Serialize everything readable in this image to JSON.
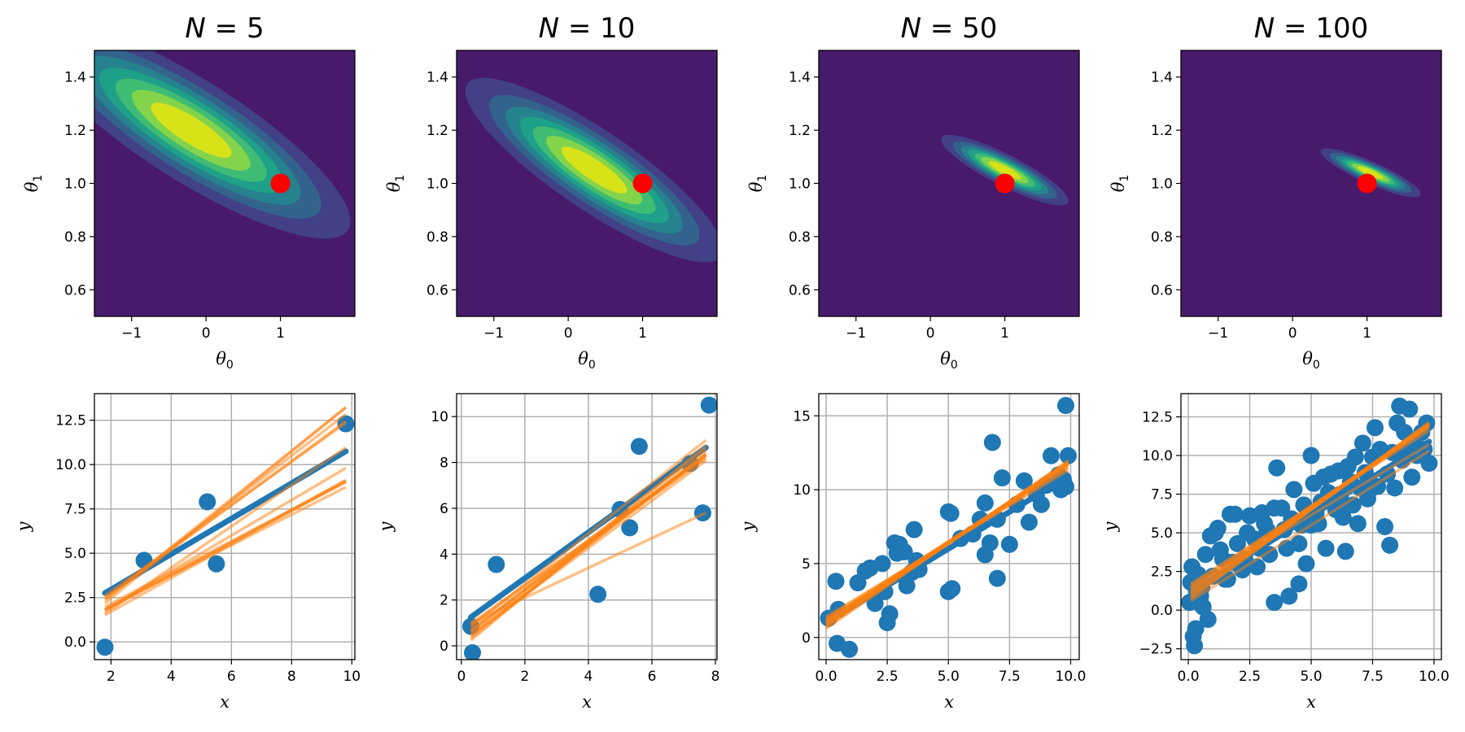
{
  "figure": {
    "description": "Bayesian linear regression: posterior over parameters (top) and sampled regression lines on data (bottom) for increasing N"
  },
  "colors": {
    "viridis_levels": [
      "#481a6c",
      "#424086",
      "#33638d",
      "#26828e",
      "#1fa088",
      "#3fbc73",
      "#84d44b",
      "#d8e219"
    ],
    "true_param_marker": "#ff0000",
    "data_points": "#1f77b4",
    "mean_line": "#1f77b4",
    "sample_lines": "#ff7f0e",
    "grid": "#b0b0b0"
  },
  "chart_data": [
    {
      "type": "heatmap",
      "subtype": "filled-contour",
      "panel": "posterior-N5",
      "title": "N = 5",
      "title_var": "N",
      "title_value": "5",
      "xlabel": "θ",
      "xlabel_sub": "0",
      "ylabel": "θ",
      "ylabel_sub": "1",
      "xlim": [
        -1.5,
        2.0
      ],
      "ylim": [
        0.5,
        1.5
      ],
      "xticks": [
        -1,
        0,
        1
      ],
      "xtick_labels": [
        "−1",
        "0",
        "1"
      ],
      "yticks": [
        0.6,
        0.8,
        1.0,
        1.2,
        1.4
      ],
      "ytick_labels": [
        "0.6",
        "0.8",
        "1.0",
        "1.2",
        "1.4"
      ],
      "posterior_mean": [
        -0.2,
        1.2
      ],
      "posterior_sd": [
        1.05,
        0.2
      ],
      "posterior_corr": -0.84,
      "contour_levels": 7,
      "true_param": [
        1.0,
        1.0
      ]
    },
    {
      "type": "heatmap",
      "subtype": "filled-contour",
      "panel": "posterior-N10",
      "title": "N = 10",
      "title_var": "N",
      "title_value": "10",
      "xlabel": "θ",
      "xlabel_sub": "0",
      "ylabel": "θ",
      "ylabel_sub": "1",
      "xlim": [
        -1.5,
        2.0
      ],
      "ylim": [
        0.5,
        1.5
      ],
      "xticks": [
        -1,
        0,
        1
      ],
      "xtick_labels": [
        "−1",
        "0",
        "1"
      ],
      "yticks": [
        0.6,
        0.8,
        1.0,
        1.2,
        1.4
      ],
      "ytick_labels": [
        "0.6",
        "0.8",
        "1.0",
        "1.2",
        "1.4"
      ],
      "posterior_mean": [
        0.35,
        1.05
      ],
      "posterior_sd": [
        0.85,
        0.17
      ],
      "posterior_corr": -0.86,
      "contour_levels": 7,
      "true_param": [
        1.0,
        1.0
      ]
    },
    {
      "type": "heatmap",
      "subtype": "filled-contour",
      "panel": "posterior-N50",
      "title": "N = 50",
      "title_var": "N",
      "title_value": "50",
      "xlabel": "θ",
      "xlabel_sub": "0",
      "ylabel": "θ",
      "ylabel_sub": "1",
      "xlim": [
        -1.5,
        2.0
      ],
      "ylim": [
        0.5,
        1.5
      ],
      "xticks": [
        -1,
        0,
        1
      ],
      "xtick_labels": [
        "−1",
        "0",
        "1"
      ],
      "yticks": [
        0.6,
        0.8,
        1.0,
        1.2,
        1.4
      ],
      "ytick_labels": [
        "0.6",
        "0.8",
        "1.0",
        "1.2",
        "1.4"
      ],
      "posterior_mean": [
        1.0,
        1.05
      ],
      "posterior_sd": [
        0.42,
        0.065
      ],
      "posterior_corr": -0.87,
      "contour_levels": 7,
      "true_param": [
        1.0,
        1.0
      ]
    },
    {
      "type": "heatmap",
      "subtype": "filled-contour",
      "panel": "posterior-N100",
      "title": "N = 100",
      "title_var": "N",
      "title_value": "100",
      "xlabel": "θ",
      "xlabel_sub": "0",
      "ylabel": "θ",
      "ylabel_sub": "1",
      "xlim": [
        -1.5,
        2.0
      ],
      "ylim": [
        0.5,
        1.5
      ],
      "xticks": [
        -1,
        0,
        1
      ],
      "xtick_labels": [
        "−1",
        "0",
        "1"
      ],
      "yticks": [
        0.6,
        0.8,
        1.0,
        1.2,
        1.4
      ],
      "ytick_labels": [
        "0.6",
        "0.8",
        "1.0",
        "1.2",
        "1.4"
      ],
      "posterior_mean": [
        1.05,
        1.04
      ],
      "posterior_sd": [
        0.33,
        0.045
      ],
      "posterior_corr": -0.87,
      "contour_levels": 7,
      "true_param": [
        1.0,
        1.0
      ]
    },
    {
      "type": "scatter",
      "panel": "data-N5",
      "xlabel": "x",
      "ylabel": "y",
      "xlim": [
        1.45,
        10.1
      ],
      "ylim": [
        -1.0,
        14.0
      ],
      "xticks": [
        2,
        4,
        6,
        8,
        10
      ],
      "xtick_labels": [
        "2",
        "4",
        "6",
        "8",
        "10"
      ],
      "yticks": [
        0.0,
        2.5,
        5.0,
        7.5,
        10.0,
        12.5
      ],
      "ytick_labels": [
        "0.0",
        "2.5",
        "5.0",
        "7.5",
        "10.0",
        "12.5"
      ],
      "grid": true,
      "points": [
        [
          1.8,
          -0.3
        ],
        [
          3.1,
          4.6
        ],
        [
          5.2,
          7.9
        ],
        [
          5.5,
          4.4
        ],
        [
          9.8,
          12.3
        ]
      ],
      "line_x_range": [
        1.8,
        9.8
      ],
      "mean_line": [
        0.95,
        1.0
      ],
      "sample_lines": [
        [
          -0.3,
          1.38
        ],
        [
          -0.1,
          1.36
        ],
        [
          0.1,
          1.3
        ],
        [
          0.4,
          1.22
        ],
        [
          0.2,
          1.25
        ],
        [
          -0.5,
          1.17
        ],
        [
          0.0,
          1.0
        ],
        [
          0.2,
          0.9
        ],
        [
          0.4,
          0.88
        ],
        [
          0.1,
          0.92
        ],
        [
          -0.2,
          0.95
        ],
        [
          0.3,
          0.86
        ]
      ]
    },
    {
      "type": "scatter",
      "panel": "data-N10",
      "xlabel": "x",
      "ylabel": "y",
      "xlim": [
        -0.15,
        8.05
      ],
      "ylim": [
        -0.6,
        11.0
      ],
      "xticks": [
        0,
        2,
        4,
        6,
        8
      ],
      "xtick_labels": [
        "0",
        "2",
        "4",
        "6",
        "8"
      ],
      "yticks": [
        0,
        2,
        4,
        6,
        8,
        10
      ],
      "ytick_labels": [
        "0",
        "2",
        "4",
        "6",
        "8",
        "10"
      ],
      "grid": true,
      "points": [
        [
          0.3,
          0.85
        ],
        [
          0.35,
          -0.3
        ],
        [
          1.1,
          3.55
        ],
        [
          4.3,
          2.25
        ],
        [
          5.0,
          5.95
        ],
        [
          5.3,
          5.15
        ],
        [
          5.6,
          8.7
        ],
        [
          7.2,
          7.95
        ],
        [
          7.6,
          5.8
        ],
        [
          7.8,
          10.5
        ]
      ],
      "line_x_range": [
        0.3,
        7.7
      ],
      "mean_line": [
        0.95,
        1.0
      ],
      "sample_lines": [
        [
          0.5,
          1.1
        ],
        [
          0.3,
          1.08
        ],
        [
          0.2,
          1.06
        ],
        [
          0.6,
          1.0
        ],
        [
          0.4,
          1.02
        ],
        [
          0.1,
          1.07
        ],
        [
          0.0,
          1.1
        ],
        [
          0.7,
          0.97
        ],
        [
          0.35,
          1.04
        ],
        [
          0.15,
          1.03
        ],
        [
          -0.1,
          1.15
        ],
        [
          0.8,
          0.65
        ]
      ]
    },
    {
      "type": "scatter",
      "panel": "data-N50",
      "xlabel": "x",
      "ylabel": "y",
      "xlim": [
        -0.3,
        10.35
      ],
      "ylim": [
        -1.5,
        16.5
      ],
      "xticks": [
        0.0,
        2.5,
        5.0,
        7.5,
        10.0
      ],
      "xtick_labels": [
        "0.0",
        "2.5",
        "5.0",
        "7.5",
        "10.0"
      ],
      "yticks": [
        0,
        5,
        10,
        15
      ],
      "ytick_labels": [
        "0",
        "5",
        "10",
        "15"
      ],
      "grid": true,
      "points": [
        [
          0.1,
          1.3
        ],
        [
          0.4,
          3.8
        ],
        [
          0.5,
          1.9
        ],
        [
          0.45,
          -0.4
        ],
        [
          0.95,
          -0.8
        ],
        [
          1.3,
          3.7
        ],
        [
          1.6,
          4.5
        ],
        [
          1.8,
          4.7
        ],
        [
          2.0,
          2.3
        ],
        [
          2.3,
          5.0
        ],
        [
          2.4,
          3.1
        ],
        [
          2.5,
          1.0
        ],
        [
          2.6,
          1.6
        ],
        [
          2.8,
          6.4
        ],
        [
          2.9,
          5.7
        ],
        [
          3.0,
          6.3
        ],
        [
          3.2,
          5.8
        ],
        [
          3.3,
          3.5
        ],
        [
          3.5,
          4.4
        ],
        [
          3.6,
          7.3
        ],
        [
          3.7,
          5.2
        ],
        [
          3.8,
          4.6
        ],
        [
          5.0,
          8.5
        ],
        [
          5.1,
          8.4
        ],
        [
          5.0,
          3.1
        ],
        [
          5.15,
          3.3
        ],
        [
          5.5,
          6.7
        ],
        [
          6.0,
          7.0
        ],
        [
          6.3,
          8.0
        ],
        [
          6.5,
          9.1
        ],
        [
          6.5,
          5.6
        ],
        [
          6.7,
          6.4
        ],
        [
          6.8,
          13.2
        ],
        [
          7.0,
          8.0
        ],
        [
          7.0,
          4.0
        ],
        [
          7.2,
          10.8
        ],
        [
          7.5,
          6.3
        ],
        [
          7.8,
          9.0
        ],
        [
          8.1,
          10.6
        ],
        [
          8.3,
          7.8
        ],
        [
          8.6,
          9.7
        ],
        [
          8.8,
          9.0
        ],
        [
          9.0,
          10.3
        ],
        [
          9.2,
          12.3
        ],
        [
          9.5,
          11.0
        ],
        [
          9.6,
          10.0
        ],
        [
          9.8,
          10.2
        ],
        [
          9.8,
          15.7
        ],
        [
          9.9,
          12.3
        ],
        [
          9.7,
          10.7
        ]
      ],
      "line_x_range": [
        0.0,
        9.9
      ],
      "mean_line": [
        1.0,
        1.0
      ],
      "sample_lines": [
        [
          0.8,
          1.12
        ],
        [
          1.2,
          1.06
        ],
        [
          0.9,
          1.1
        ],
        [
          1.3,
          1.03
        ],
        [
          0.7,
          1.13
        ],
        [
          1.0,
          1.08
        ],
        [
          1.1,
          1.05
        ],
        [
          0.6,
          1.15
        ],
        [
          1.4,
          1.0
        ],
        [
          0.95,
          1.09
        ],
        [
          1.15,
          1.07
        ],
        [
          0.85,
          1.11
        ]
      ]
    },
    {
      "type": "scatter",
      "panel": "data-N100",
      "xlabel": "x",
      "ylabel": "y",
      "xlim": [
        -0.3,
        10.3
      ],
      "ylim": [
        -3.2,
        14.0
      ],
      "xticks": [
        0.0,
        2.5,
        5.0,
        7.5,
        10.0
      ],
      "xtick_labels": [
        "0.0",
        "2.5",
        "5.0",
        "7.5",
        "10.0"
      ],
      "yticks": [
        -2.5,
        0.0,
        2.5,
        5.0,
        7.5,
        10.0,
        12.5
      ],
      "ytick_labels": [
        "−2.5",
        "0.0",
        "2.5",
        "5.0",
        "7.5",
        "10.0",
        "12.5"
      ],
      "grid": true,
      "points": [
        [
          0.05,
          0.5
        ],
        [
          0.1,
          1.8
        ],
        [
          0.15,
          2.8
        ],
        [
          0.2,
          -1.7
        ],
        [
          0.25,
          -2.3
        ],
        [
          0.3,
          -1.2
        ],
        [
          0.4,
          2.3
        ],
        [
          0.5,
          0.9
        ],
        [
          0.6,
          0.2
        ],
        [
          0.7,
          3.6
        ],
        [
          0.8,
          -0.6
        ],
        [
          0.9,
          4.8
        ],
        [
          1.0,
          2.2
        ],
        [
          1.1,
          5.0
        ],
        [
          1.2,
          5.3
        ],
        [
          1.4,
          3.3
        ],
        [
          1.6,
          2.0
        ],
        [
          1.7,
          6.2
        ],
        [
          1.9,
          6.2
        ],
        [
          2.0,
          4.3
        ],
        [
          2.2,
          2.6
        ],
        [
          2.4,
          5.0
        ],
        [
          2.5,
          6.1
        ],
        [
          2.7,
          4.6
        ],
        [
          2.8,
          2.8
        ],
        [
          3.0,
          6.3
        ],
        [
          3.2,
          5.2
        ],
        [
          3.3,
          3.6
        ],
        [
          3.5,
          6.6
        ],
        [
          3.5,
          0.5
        ],
        [
          3.6,
          9.2
        ],
        [
          3.8,
          6.6
        ],
        [
          4.0,
          4.0
        ],
        [
          4.1,
          0.9
        ],
        [
          4.2,
          5.9
        ],
        [
          4.3,
          7.8
        ],
        [
          4.5,
          4.3
        ],
        [
          4.5,
          1.7
        ],
        [
          4.7,
          6.8
        ],
        [
          4.8,
          3.0
        ],
        [
          5.0,
          5.5
        ],
        [
          5.0,
          10.0
        ],
        [
          5.1,
          8.2
        ],
        [
          5.2,
          6.3
        ],
        [
          5.3,
          5.6
        ],
        [
          5.4,
          7.0
        ],
        [
          5.5,
          8.6
        ],
        [
          5.6,
          4.0
        ],
        [
          5.7,
          7.6
        ],
        [
          5.8,
          8.8
        ],
        [
          6.0,
          6.5
        ],
        [
          6.1,
          9.0
        ],
        [
          6.2,
          7.5
        ],
        [
          6.3,
          6.0
        ],
        [
          6.4,
          3.8
        ],
        [
          6.5,
          9.3
        ],
        [
          6.6,
          8.3
        ],
        [
          6.7,
          6.8
        ],
        [
          6.8,
          9.9
        ],
        [
          6.9,
          5.6
        ],
        [
          7.0,
          7.9
        ],
        [
          7.1,
          10.8
        ],
        [
          7.2,
          8.9
        ],
        [
          7.4,
          7.8
        ],
        [
          7.5,
          9.9
        ],
        [
          7.6,
          11.8
        ],
        [
          7.7,
          8.0
        ],
        [
          7.8,
          10.4
        ],
        [
          8.0,
          5.4
        ],
        [
          8.1,
          8.8
        ],
        [
          8.2,
          4.2
        ],
        [
          8.3,
          10.2
        ],
        [
          8.4,
          7.9
        ],
        [
          8.5,
          12.1
        ],
        [
          8.6,
          13.2
        ],
        [
          8.7,
          9.7
        ],
        [
          8.8,
          11.5
        ],
        [
          9.0,
          13.0
        ],
        [
          9.1,
          8.6
        ],
        [
          9.3,
          10.0
        ],
        [
          9.5,
          11.5
        ],
        [
          9.6,
          10.4
        ],
        [
          9.7,
          12.1
        ],
        [
          9.8,
          9.5
        ],
        [
          9.2,
          10.8
        ],
        [
          6.2,
          6.9
        ],
        [
          5.9,
          7.3
        ],
        [
          4.9,
          6.1
        ],
        [
          3.9,
          5.2
        ],
        [
          2.9,
          4.0
        ],
        [
          1.5,
          2.0
        ],
        [
          1.3,
          3.9
        ],
        [
          0.35,
          0.8
        ],
        [
          0.55,
          1.5
        ],
        [
          7.3,
          7.2
        ],
        [
          8.9,
          10.2
        ],
        [
          4.6,
          5.5
        ],
        [
          3.1,
          5.6
        ],
        [
          2.3,
          3.3
        ],
        [
          1.8,
          3.1
        ]
      ],
      "line_x_range": [
        0.1,
        9.8
      ],
      "mean_line": [
        1.1,
        1.0
      ],
      "sample_lines": [
        [
          0.9,
          1.12
        ],
        [
          1.2,
          1.1
        ],
        [
          0.8,
          1.15
        ],
        [
          1.5,
          1.05
        ],
        [
          0.6,
          1.18
        ],
        [
          1.0,
          1.13
        ],
        [
          1.3,
          1.08
        ],
        [
          0.7,
          1.16
        ],
        [
          1.6,
          1.02
        ],
        [
          1.1,
          1.11
        ],
        [
          0.5,
          1.0
        ],
        [
          1.4,
          0.95
        ]
      ]
    }
  ]
}
